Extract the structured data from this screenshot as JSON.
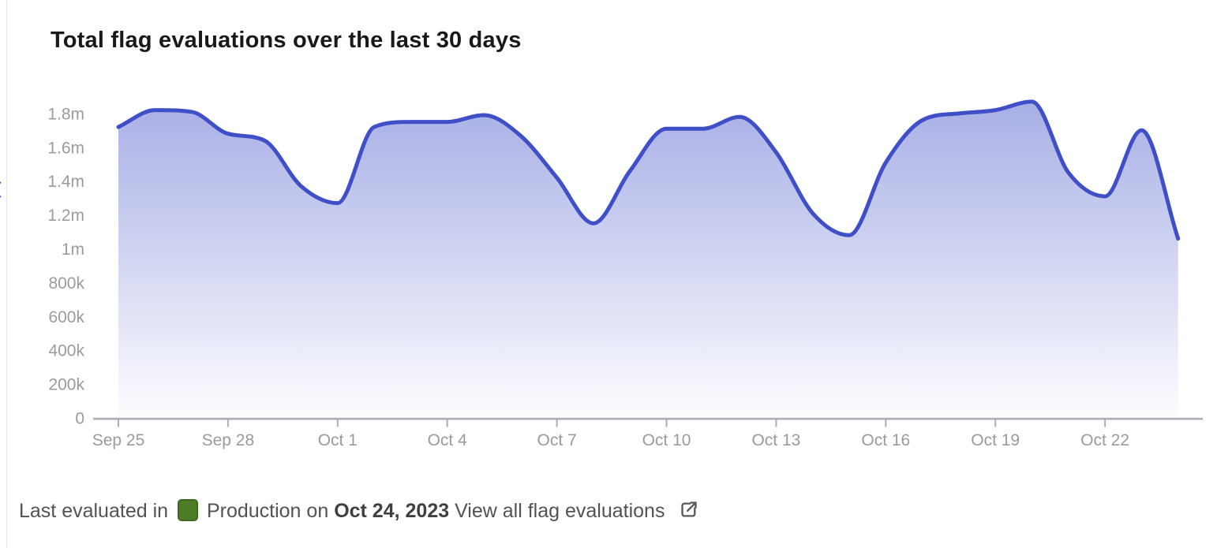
{
  "header": {
    "title": "Total flag evaluations over the last 30 days"
  },
  "chart_data": {
    "type": "area",
    "title": "Total flag evaluations over the last 30 days",
    "categories": [
      "Sep 25",
      "Sep 26",
      "Sep 27",
      "Sep 28",
      "Sep 29",
      "Sep 30",
      "Oct 1",
      "Oct 2",
      "Oct 3",
      "Oct 4",
      "Oct 5",
      "Oct 6",
      "Oct 7",
      "Oct 8",
      "Oct 9",
      "Oct 10",
      "Oct 11",
      "Oct 12",
      "Oct 13",
      "Oct 14",
      "Oct 15",
      "Oct 16",
      "Oct 17",
      "Oct 18",
      "Oct 19",
      "Oct 20",
      "Oct 21",
      "Oct 22",
      "Oct 23",
      "Oct 24"
    ],
    "values": [
      1720000,
      1820000,
      1810000,
      1680000,
      1640000,
      1370000,
      1270000,
      1720000,
      1750000,
      1750000,
      1790000,
      1670000,
      1420000,
      1150000,
      1460000,
      1710000,
      1710000,
      1780000,
      1570000,
      1210000,
      1080000,
      1510000,
      1760000,
      1800000,
      1820000,
      1870000,
      1450000,
      1310000,
      1700000,
      1060000
    ],
    "y_ticks": [
      {
        "label": "1.8m",
        "value": 1800000
      },
      {
        "label": "1.6m",
        "value": 1600000
      },
      {
        "label": "1.4m",
        "value": 1400000
      },
      {
        "label": "1.2m",
        "value": 1200000
      },
      {
        "label": "1m",
        "value": 1000000
      },
      {
        "label": "800k",
        "value": 800000
      },
      {
        "label": "600k",
        "value": 600000
      },
      {
        "label": "400k",
        "value": 400000
      },
      {
        "label": "200k",
        "value": 200000
      },
      {
        "label": "0",
        "value": 0
      }
    ],
    "x_ticks": [
      {
        "label": "Sep 25",
        "index": 0
      },
      {
        "label": "Sep 28",
        "index": 3
      },
      {
        "label": "Oct 1",
        "index": 6
      },
      {
        "label": "Oct 4",
        "index": 9
      },
      {
        "label": "Oct 7",
        "index": 12
      },
      {
        "label": "Oct 10",
        "index": 15
      },
      {
        "label": "Oct 13",
        "index": 18
      },
      {
        "label": "Oct 16",
        "index": 21
      },
      {
        "label": "Oct 19",
        "index": 24
      },
      {
        "label": "Oct 22",
        "index": 27
      }
    ],
    "ylim": [
      0,
      1900000
    ],
    "grid": false,
    "legend": false,
    "colors": {
      "line": "#3f4fc8",
      "fill_top": "#a7aee5",
      "fill_bottom": "#fdfdff",
      "axis": "#a9aeb7",
      "tick": "#adadb3",
      "tick_label": "#9a9ba0"
    }
  },
  "footer": {
    "prefix": "Last evaluated in",
    "environment": "Production",
    "connector": "on",
    "date": "Oct 24, 2023",
    "link_label": "View all flag evaluations",
    "environment_color": "#4c7c23",
    "icon": "external-link-icon"
  }
}
